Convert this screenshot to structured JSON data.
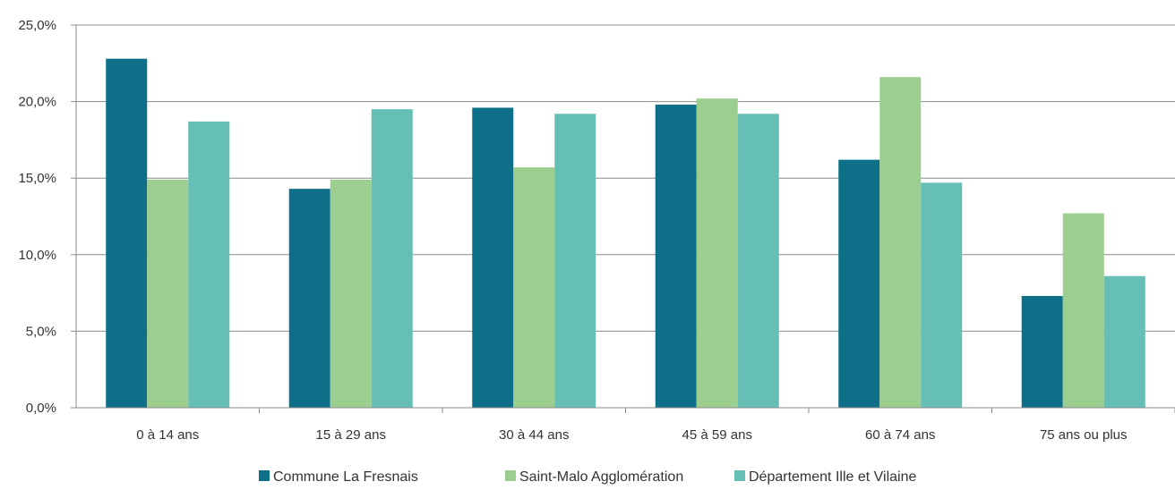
{
  "chart_data": {
    "type": "bar",
    "title": "",
    "xlabel": "",
    "ylabel": "",
    "ylim": [
      0,
      25
    ],
    "y_ticks": [
      "0,0%",
      "5,0%",
      "10,0%",
      "15,0%",
      "20,0%",
      "25,0%"
    ],
    "y_tick_values": [
      0,
      5,
      10,
      15,
      20,
      25
    ],
    "grid": true,
    "legend_position": "bottom",
    "categories": [
      "0 à 14 ans",
      "15 à 29 ans",
      "30 à 44 ans",
      "45 à 59 ans",
      "60 à 74 ans",
      "75 ans ou plus"
    ],
    "series": [
      {
        "name": "Commune La Fresnais",
        "color": "#0e7088",
        "values": [
          22.8,
          14.3,
          19.6,
          19.8,
          16.2,
          7.3
        ]
      },
      {
        "name": "Saint-Malo Agglomération",
        "color": "#9bce8f",
        "values": [
          14.9,
          14.9,
          15.7,
          20.2,
          21.6,
          12.7
        ]
      },
      {
        "name": "Département Ille et Vilaine",
        "color": "#66bfb4",
        "values": [
          18.7,
          19.5,
          19.2,
          19.2,
          14.7,
          8.6
        ]
      }
    ]
  }
}
